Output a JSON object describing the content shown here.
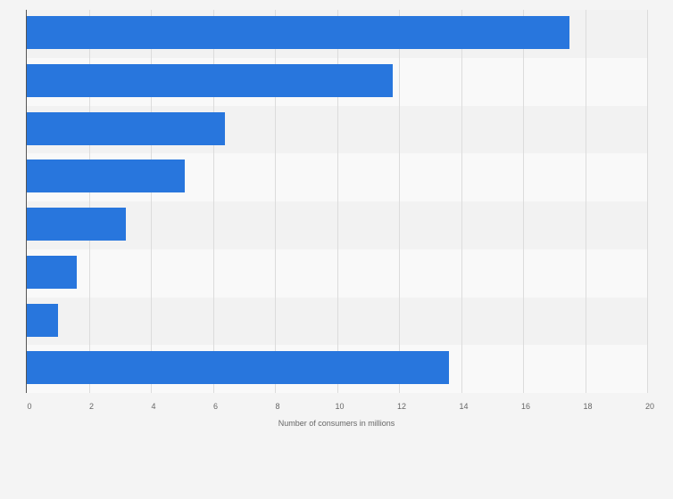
{
  "chart_data": {
    "type": "bar",
    "orientation": "horizontal",
    "title": "",
    "xlabel": "Number of consumers in millions",
    "ylabel": "",
    "categories": [
      "",
      "",
      "",
      "",
      "",
      "",
      "",
      ""
    ],
    "values": [
      17.5,
      11.8,
      6.4,
      5.1,
      3.2,
      1.6,
      1.0,
      13.6
    ],
    "xlim": [
      0,
      20
    ],
    "xticks": [
      "0",
      "2",
      "4",
      "6",
      "8",
      "10",
      "12",
      "14",
      "16",
      "18",
      "20"
    ],
    "grid": true,
    "legend": null,
    "bar_color": "#2876dd"
  },
  "colors": {
    "background": "#f4f4f4",
    "band_dark": "#f2f2f2",
    "band_light": "#f9f9f9",
    "bar": "#2876dd"
  }
}
